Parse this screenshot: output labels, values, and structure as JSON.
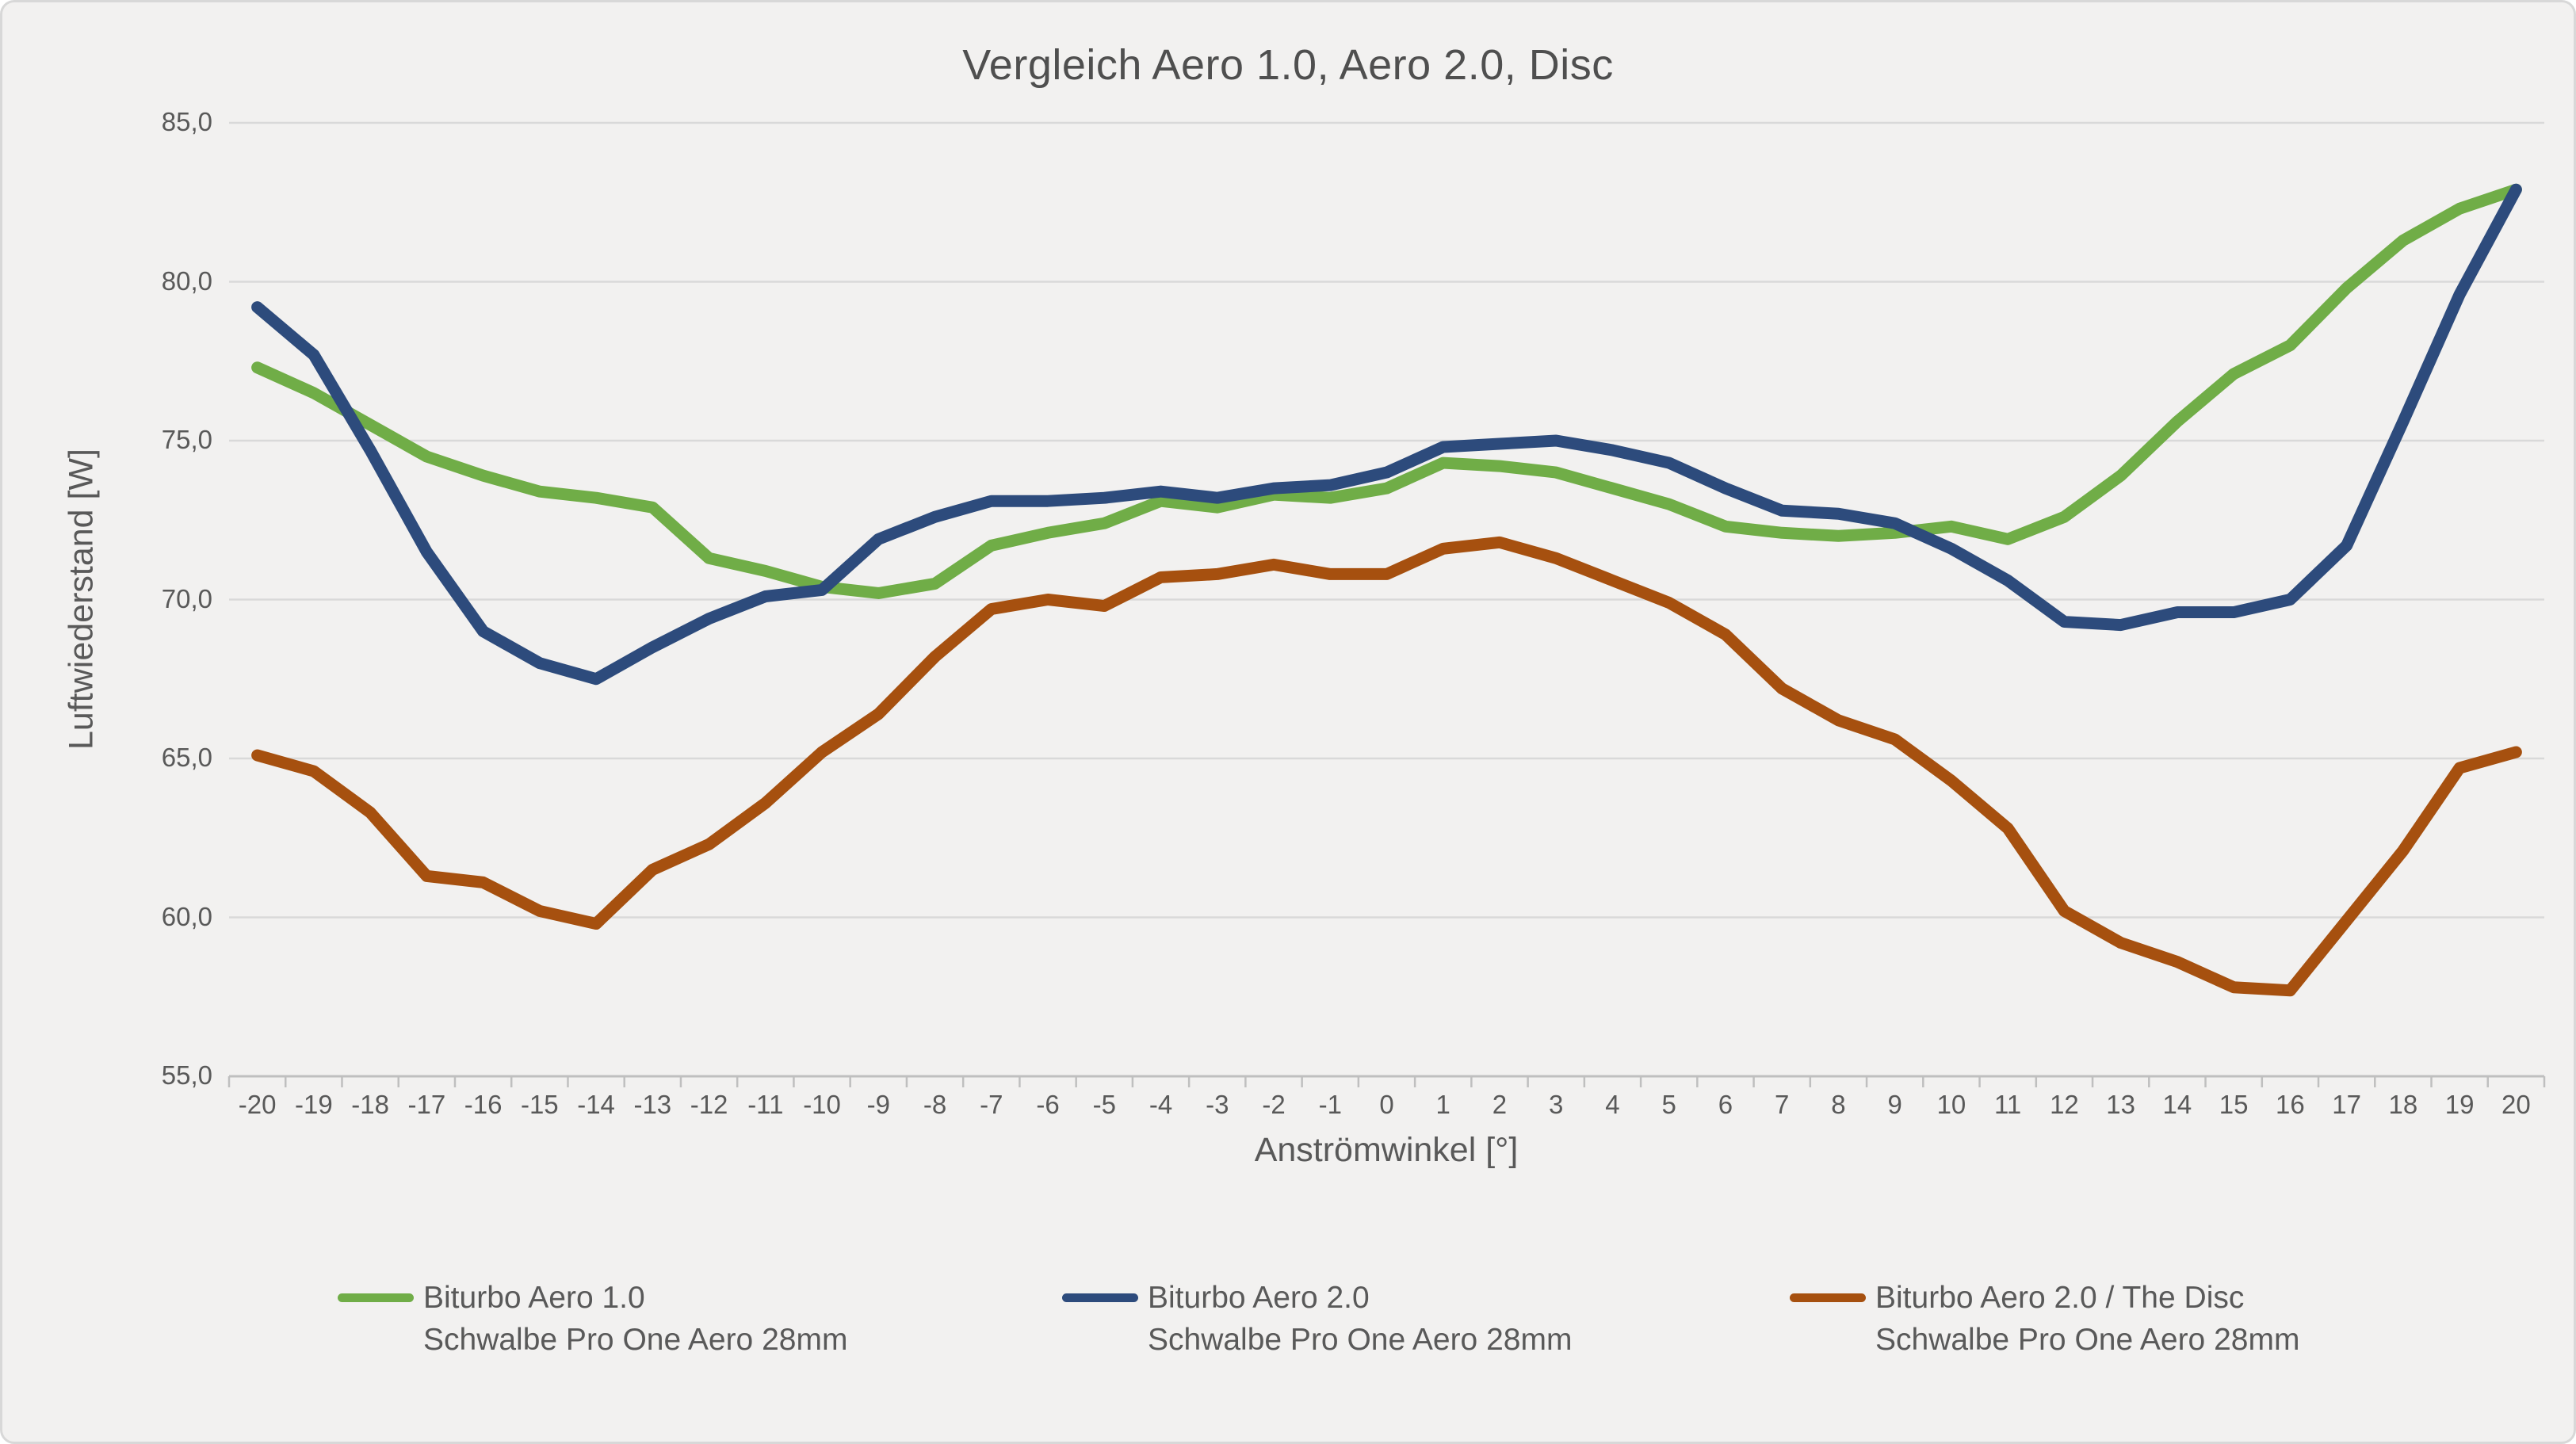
{
  "title": "Vergleich Aero 1.0, Aero 2.0, Disc",
  "colors": {
    "background": "#F2F1F0",
    "frame_border": "#D8D8D8",
    "gridline": "#D9D9D9",
    "axis_line": "#BFBFBF",
    "text": "#595959",
    "title_text": "#4F4F4F",
    "series_green": "#70AD47",
    "series_blue": "#2D4B7C",
    "series_brown": "#A6500F"
  },
  "chart_data": {
    "type": "line",
    "title": "Vergleich Aero 1.0, Aero 2.0, Disc",
    "xlabel": "Anströmwinkel [°]",
    "ylabel": "Luftwiederstand [W]",
    "ylim": [
      55,
      85
    ],
    "grid": "horizontal",
    "legend_position": "bottom",
    "x": [
      -20,
      -19,
      -18,
      -17,
      -16,
      -15,
      -14,
      -13,
      -12,
      -11,
      -10,
      -9,
      -8,
      -7,
      -6,
      -5,
      -4,
      -3,
      -2,
      -1,
      0,
      1,
      2,
      3,
      4,
      5,
      6,
      7,
      8,
      9,
      10,
      11,
      12,
      13,
      14,
      15,
      16,
      17,
      18,
      19,
      20
    ],
    "x_tick_labels": [
      "-20",
      "-19",
      "-18",
      "-17",
      "-16",
      "-15",
      "-14",
      "-13",
      "-12",
      "-11",
      "-10",
      "-9",
      "-8",
      "-7",
      "-6",
      "-5",
      "-4",
      "-3",
      "-2",
      "-1",
      "0",
      "1",
      "2",
      "3",
      "4",
      "5",
      "6",
      "7",
      "8",
      "9",
      "10",
      "11",
      "12",
      "13",
      "14",
      "15",
      "16",
      "17",
      "18",
      "19",
      "20"
    ],
    "y_ticks": [
      85,
      80,
      75,
      70,
      65,
      60,
      55
    ],
    "y_tick_labels": [
      "85,0",
      "80,0",
      "75,0",
      "70,0",
      "65,0",
      "60,0",
      "55,0"
    ],
    "series": [
      {
        "name": "Biturbo Aero 1.0",
        "subtitle": "Schwalbe Pro One Aero 28mm",
        "color": "#70AD47",
        "values": [
          77.3,
          76.5,
          75.5,
          74.5,
          73.9,
          73.4,
          73.2,
          72.9,
          71.3,
          70.9,
          70.4,
          70.2,
          70.5,
          71.7,
          72.1,
          72.4,
          73.1,
          72.9,
          73.3,
          73.2,
          73.5,
          74.3,
          74.2,
          74.0,
          73.5,
          73.0,
          72.3,
          72.1,
          72.0,
          72.1,
          72.3,
          71.9,
          72.6,
          73.9,
          75.6,
          77.1,
          78.0,
          79.8,
          81.3,
          82.3,
          82.9
        ]
      },
      {
        "name": "Biturbo Aero 2.0",
        "subtitle": "Schwalbe Pro One Aero 28mm",
        "color": "#2D4B7C",
        "values": [
          79.2,
          77.7,
          74.7,
          71.5,
          69.0,
          68.0,
          67.5,
          68.5,
          69.4,
          70.1,
          70.3,
          71.9,
          72.6,
          73.1,
          73.1,
          73.2,
          73.4,
          73.2,
          73.5,
          73.6,
          74.0,
          74.8,
          74.9,
          75.0,
          74.7,
          74.3,
          73.5,
          72.8,
          72.7,
          72.4,
          71.6,
          70.6,
          69.3,
          69.2,
          69.6,
          69.6,
          70.0,
          71.7,
          75.6,
          79.6,
          82.9
        ]
      },
      {
        "name": "Biturbo Aero 2.0 / The Disc",
        "subtitle": "Schwalbe Pro One Aero 28mm",
        "color": "#A6500F",
        "values": [
          65.1,
          64.6,
          63.3,
          61.3,
          61.1,
          60.2,
          59.8,
          61.5,
          62.3,
          63.6,
          65.2,
          66.4,
          68.2,
          69.7,
          70.0,
          69.8,
          70.7,
          70.8,
          71.1,
          70.8,
          70.8,
          71.6,
          71.8,
          71.3,
          70.6,
          69.9,
          68.9,
          67.2,
          66.2,
          65.6,
          64.3,
          62.8,
          60.2,
          59.2,
          58.6,
          57.8,
          57.7,
          59.9,
          62.1,
          64.7,
          65.2
        ]
      }
    ]
  }
}
